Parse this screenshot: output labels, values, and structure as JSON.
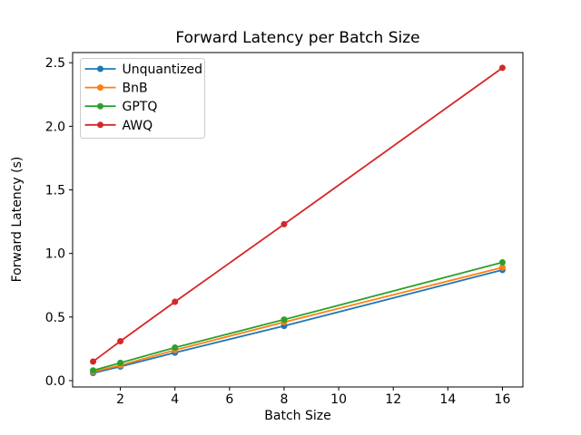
{
  "chart_data": {
    "type": "line",
    "title": "Forward Latency per Batch Size",
    "xlabel": "Batch Size",
    "ylabel": "Forward Latency (s)",
    "x": [
      1,
      2,
      4,
      8,
      16
    ],
    "series": [
      {
        "name": "Unquantized",
        "color": "#1f77b4",
        "values": [
          0.06,
          0.11,
          0.22,
          0.43,
          0.87
        ]
      },
      {
        "name": "BnB",
        "color": "#ff7f0e",
        "values": [
          0.07,
          0.12,
          0.24,
          0.46,
          0.89
        ]
      },
      {
        "name": "GPTQ",
        "color": "#2ca02c",
        "values": [
          0.08,
          0.14,
          0.26,
          0.48,
          0.93
        ]
      },
      {
        "name": "AWQ",
        "color": "#d62728",
        "values": [
          0.15,
          0.31,
          0.62,
          1.23,
          2.46
        ]
      }
    ],
    "xlim": [
      0.25,
      16.75
    ],
    "ylim": [
      -0.05,
      2.58
    ],
    "xticks": [
      2,
      4,
      6,
      8,
      10,
      12,
      14,
      16
    ],
    "yticks": [
      0.0,
      0.5,
      1.0,
      1.5,
      2.0,
      2.5
    ],
    "ytick_labels": [
      "0.0",
      "0.5",
      "1.0",
      "1.5",
      "2.0",
      "2.5"
    ],
    "grid": false,
    "legend_position": "upper left",
    "marker": "circle",
    "axis_color": "#000000",
    "legend_border_color": "#cccccc",
    "background_color": "#ffffff"
  }
}
